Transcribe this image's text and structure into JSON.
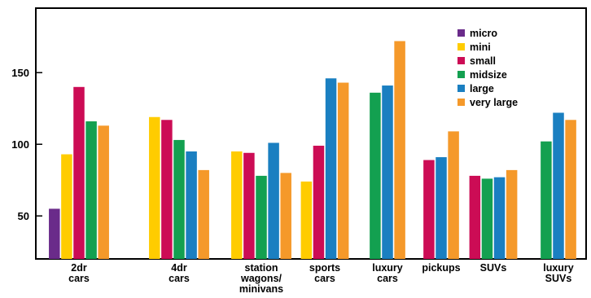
{
  "chart_data": {
    "type": "bar",
    "title": "",
    "xlabel": "",
    "ylabel": "",
    "ylim": [
      20,
      195
    ],
    "yticks": [
      50,
      100,
      150
    ],
    "grid": false,
    "legend_position": "top-right",
    "categories": [
      [
        "2dr",
        "cars"
      ],
      [
        "4dr",
        "cars"
      ],
      [
        "station",
        "wagons/",
        "minivans"
      ],
      [
        "sports",
        "cars"
      ],
      [
        "luxury",
        "cars"
      ],
      [
        "pickups"
      ],
      [
        "SUVs"
      ],
      [
        "luxury",
        "SUVs"
      ]
    ],
    "series": [
      {
        "name": "micro",
        "color": "#6a2b8a",
        "values": [
          55,
          null,
          null,
          null,
          null,
          null,
          null,
          null
        ]
      },
      {
        "name": "mini",
        "color": "#ffcc00",
        "values": [
          93,
          119,
          95,
          74,
          null,
          null,
          null,
          null
        ]
      },
      {
        "name": "small",
        "color": "#cc0c55",
        "values": [
          140,
          117,
          94,
          99,
          null,
          89,
          78,
          null
        ]
      },
      {
        "name": "midsize",
        "color": "#13a050",
        "values": [
          116,
          103,
          78,
          null,
          136,
          null,
          76,
          102
        ]
      },
      {
        "name": "large",
        "color": "#1a7fc1",
        "values": [
          null,
          95,
          101,
          146,
          141,
          91,
          77,
          122
        ]
      },
      {
        "name": "very large",
        "color": "#f5992a",
        "values": [
          113,
          82,
          80,
          143,
          172,
          109,
          82,
          117
        ]
      }
    ]
  }
}
